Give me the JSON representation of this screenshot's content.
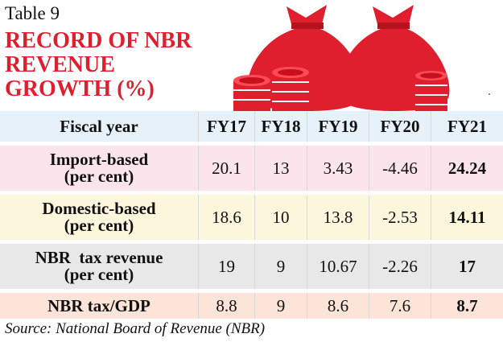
{
  "table_label": "Table 9",
  "title": {
    "line1": "RECORD OF NBR",
    "line2": "REVENUE",
    "line3": "GROWTH (%)"
  },
  "colors": {
    "accent": "#e01f2e",
    "header_row": "#e6f1fa",
    "row_import": "#fce4ec",
    "row_domestic": "#fbf6dc",
    "row_nbr_revenue": "#e8e8e8",
    "row_tax_gdp": "#fde4d8"
  },
  "icons": [
    "money-bag-icon",
    "coin-stack-icon"
  ],
  "table": {
    "headers": [
      "Fiscal year",
      "FY17",
      "FY18",
      "FY19",
      "FY20",
      "FY21"
    ],
    "rows": [
      {
        "label1": "Import-based",
        "label2": "(per cent)",
        "values": [
          "20.1",
          "13",
          "3.43",
          "-4.46",
          "24.24"
        ]
      },
      {
        "label1": "Domestic-based",
        "label2": "(per cent)",
        "values": [
          "18.6",
          "10",
          "13.8",
          "-2.53",
          "14.11"
        ]
      },
      {
        "label1": "NBR  tax revenue",
        "label2": "(per cent)",
        "values": [
          "19",
          "9",
          "10.67",
          "-2.26",
          "17"
        ]
      },
      {
        "label1": "NBR tax/GDP",
        "label2": "",
        "values": [
          "8.8",
          "9",
          "8.6",
          "7.6",
          "8.7"
        ]
      }
    ]
  },
  "source": "Source: National Board of Revenue (NBR)"
}
